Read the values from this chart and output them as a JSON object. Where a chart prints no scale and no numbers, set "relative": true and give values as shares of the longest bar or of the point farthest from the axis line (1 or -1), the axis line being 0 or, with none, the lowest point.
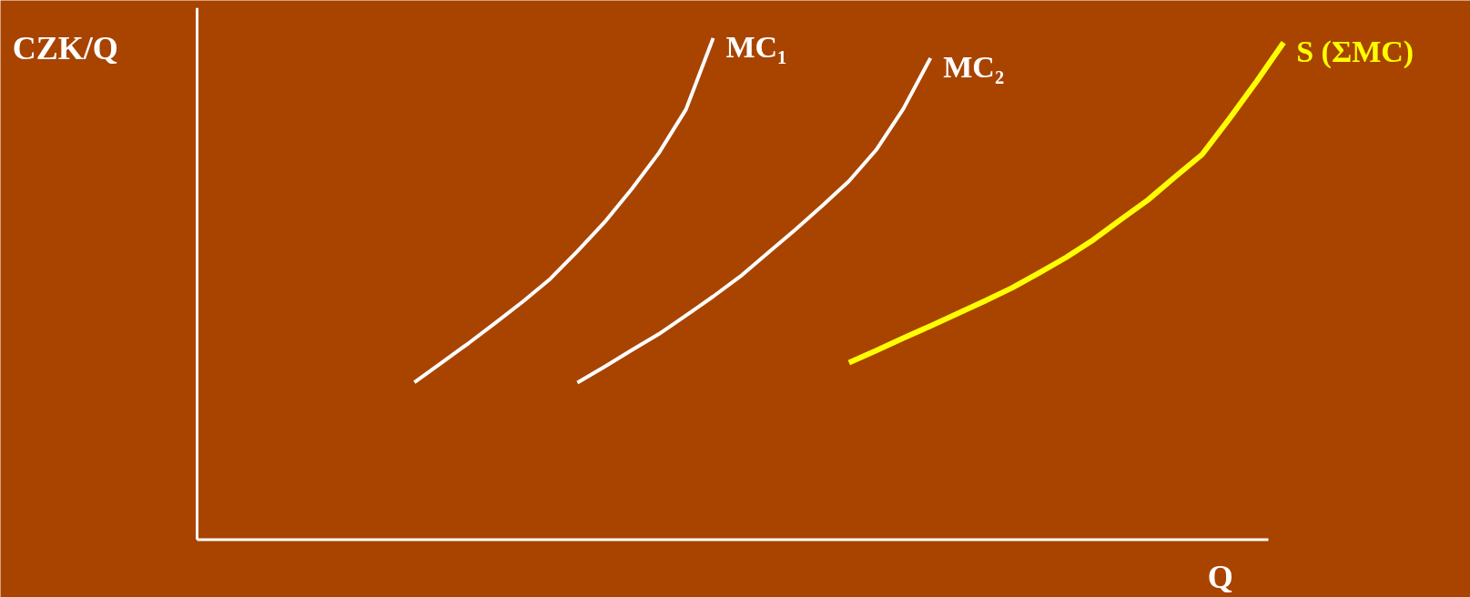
{
  "chart_data": {
    "type": "line",
    "relative": true,
    "ylabel": "CZK/Q",
    "xlabel": "Q",
    "grid": false,
    "categories": [
      null,
      null,
      null,
      null,
      null,
      null,
      null,
      null,
      null,
      null,
      null,
      null,
      null,
      null,
      null,
      null,
      null,
      null,
      null,
      null,
      null,
      null,
      null,
      null,
      null,
      null,
      null,
      null,
      null,
      null,
      null,
      null,
      null,
      null,
      null,
      null,
      null,
      null,
      null,
      null,
      null
    ],
    "series": [
      {
        "name": "MC₁",
        "color": "#ffffff",
        "values": [
          null,
          null,
          null,
          null,
          null,
          null,
          null,
          null,
          0.314,
          0.353,
          0.392,
          0.433,
          0.475,
          0.52,
          0.575,
          0.633,
          0.699,
          0.771,
          0.858,
          1.0,
          null,
          null,
          null,
          null,
          null,
          null,
          null,
          null,
          null,
          null,
          null,
          null,
          null,
          null,
          null,
          null,
          null,
          null,
          null,
          null,
          null
        ]
      },
      {
        "name": "MC₂",
        "color": "#ffffff",
        "values": [
          null,
          null,
          null,
          null,
          null,
          null,
          null,
          null,
          null,
          null,
          null,
          null,
          null,
          null,
          0.313,
          0.345,
          0.378,
          0.41,
          0.447,
          0.485,
          0.525,
          0.571,
          0.617,
          0.665,
          0.715,
          0.777,
          0.859,
          0.96,
          null,
          null,
          null,
          null,
          null,
          null,
          null,
          null,
          null,
          null,
          null,
          null,
          null
        ]
      },
      {
        "name": "S (ΣMC)",
        "color": "#ffff00",
        "values": [
          null,
          null,
          null,
          null,
          null,
          null,
          null,
          null,
          null,
          null,
          null,
          null,
          null,
          null,
          null,
          null,
          null,
          null,
          null,
          null,
          null,
          null,
          null,
          null,
          0.353,
          0.377,
          0.402,
          0.426,
          0.451,
          0.476,
          0.502,
          0.532,
          0.563,
          0.598,
          0.638,
          0.677,
          0.723,
          0.768,
          0.839,
          0.913,
          0.991
        ]
      }
    ]
  }
}
